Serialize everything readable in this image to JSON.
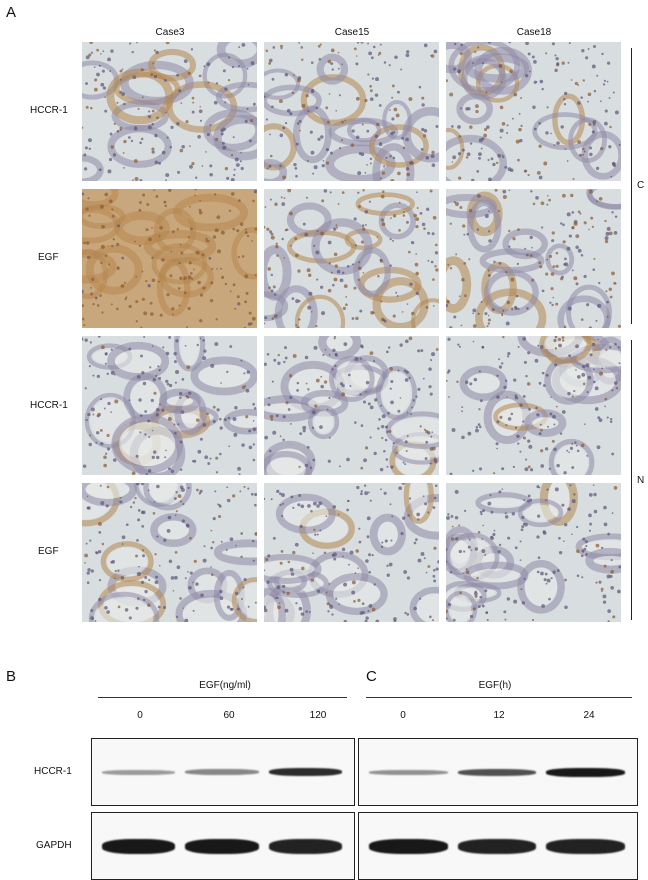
{
  "panel_a": {
    "label": "A",
    "columns": [
      "Case3",
      "Case15",
      "Case18"
    ],
    "rows": [
      "HCCR-1",
      "EGF",
      "HCCR-1",
      "EGF"
    ],
    "groups": [
      {
        "label": "C",
        "rows": [
          0,
          1
        ]
      },
      {
        "label": "N",
        "rows": [
          2,
          3
        ]
      }
    ],
    "stain_colors": {
      "brown": "#b5864e",
      "blue": "#8f8aa8",
      "background": "#d8dde0"
    }
  },
  "panel_b": {
    "label": "B",
    "treatment": "EGF(ng/ml)",
    "lanes": [
      "0",
      "60",
      "120"
    ],
    "blots": [
      "HCCR-1",
      "GAPDH"
    ],
    "hccr1_band_intensity": [
      0.25,
      0.35,
      0.85
    ],
    "gapdh_band_intensity": [
      0.95,
      0.95,
      0.9
    ]
  },
  "panel_c": {
    "label": "C",
    "treatment": "EGF(h)",
    "lanes": [
      "0",
      "12",
      "24"
    ],
    "hccr1_band_intensity": [
      0.3,
      0.65,
      0.95
    ],
    "gapdh_band_intensity": [
      0.95,
      0.9,
      0.9
    ]
  }
}
